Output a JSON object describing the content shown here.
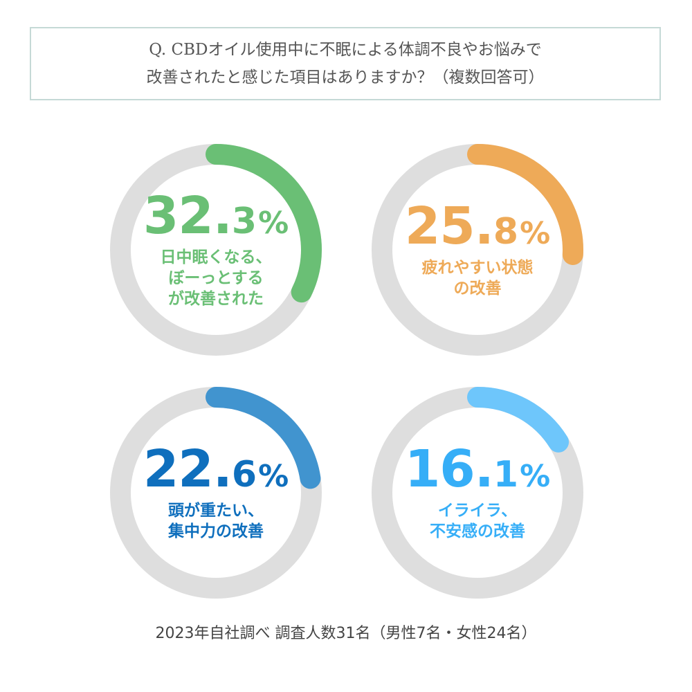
{
  "question": {
    "line1": "Q. CBDオイル使用中に不眠による体調不良やお悩みで",
    "line2": "改善されたと感じた項目はありますか？（複数回答可）"
  },
  "chart_data": {
    "type": "pie",
    "style": "donut",
    "charts": [
      {
        "value": 32.3,
        "value_int": "32.",
        "value_dec": "3",
        "unit": "%",
        "label_lines": [
          "日中眠くなる、",
          "ぼーっとする",
          "が改善された"
        ],
        "color": "#6abf75"
      },
      {
        "value": 25.8,
        "value_int": "25.",
        "value_dec": "8",
        "unit": "%",
        "label_lines": [
          "疲れやすい状態",
          "の改善"
        ],
        "color": "#eeaa58"
      },
      {
        "value": 22.6,
        "value_int": "22.",
        "value_dec": "6",
        "unit": "%",
        "label_lines": [
          "頭が重たい、",
          "集中力の改善"
        ],
        "color": "#4194cf",
        "text_color": "#0f6fbd"
      },
      {
        "value": 16.1,
        "value_int": "16.",
        "value_dec": "1",
        "unit": "%",
        "label_lines": [
          "イライラ、",
          "不安感の改善"
        ],
        "color": "#6ec6fb",
        "text_color": "#36aef7"
      }
    ],
    "track_color": "#dedede"
  },
  "footer": {
    "note": "2023年自社調べ 調査人数31名（男性7名・女性24名）"
  }
}
